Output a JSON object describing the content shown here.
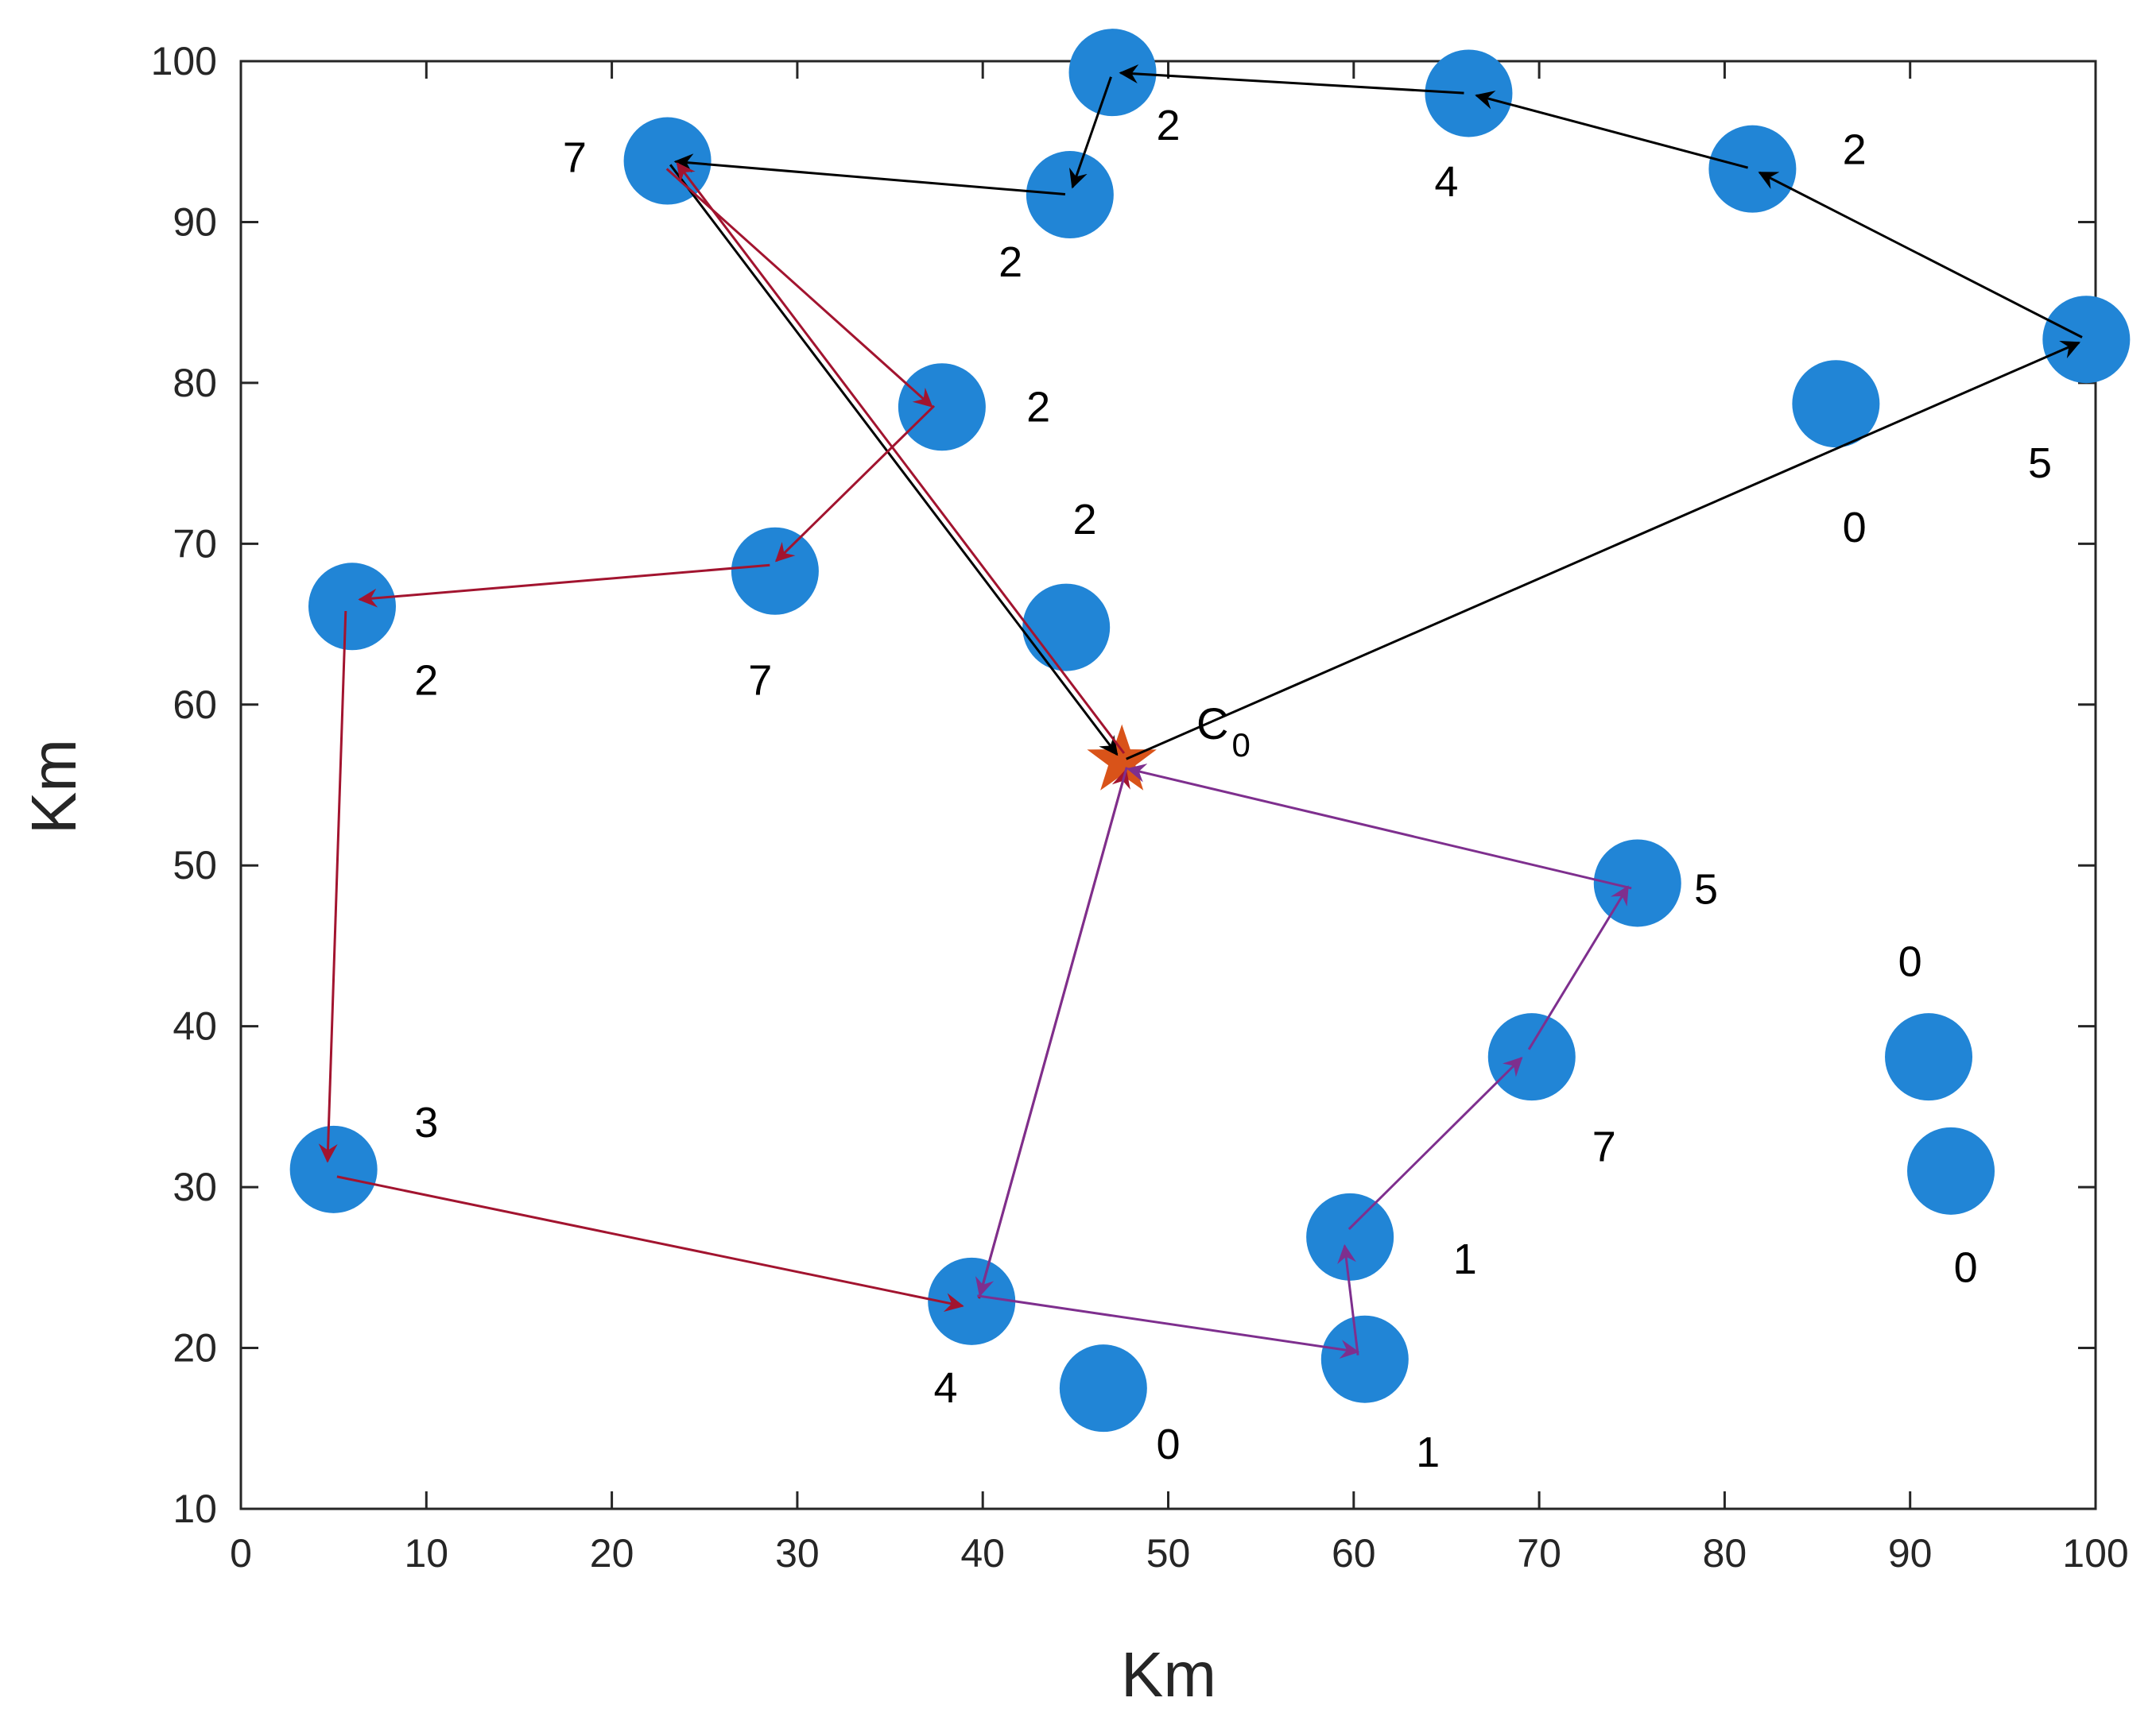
{
  "chart_data": {
    "type": "scatter",
    "title": "",
    "xlabel": "Km",
    "ylabel": "Km",
    "xlim": [
      0,
      100
    ],
    "ylim": [
      10,
      100
    ],
    "xticks": [
      "0",
      "10",
      "20",
      "30",
      "40",
      "50",
      "60",
      "70",
      "80",
      "90",
      "100"
    ],
    "yticks": [
      "10",
      "20",
      "30",
      "40",
      "50",
      "60",
      "70",
      "80",
      "90",
      "100"
    ],
    "grid": false,
    "colors": {
      "node": "#2185d6",
      "depot": "#d95319",
      "route_black": "#000000",
      "route_red": "#a2142f",
      "route_purple": "#7e2f8e"
    },
    "depot": {
      "label": "C",
      "subscript": "0",
      "x": 47.5,
      "y": 56.5
    },
    "nodes": [
      {
        "x": 47.0,
        "y": 99.3,
        "demand": "2",
        "lx": 50.0,
        "ly": 96.0
      },
      {
        "x": 66.2,
        "y": 98.0,
        "demand": "4",
        "lx": 65.0,
        "ly": 92.5
      },
      {
        "x": 81.5,
        "y": 93.3,
        "demand": "2",
        "lx": 87.0,
        "ly": 94.5
      },
      {
        "x": 99.5,
        "y": 82.7,
        "demand": "5",
        "lx": 97.0,
        "ly": 75.0
      },
      {
        "x": 86.0,
        "y": 78.7,
        "demand": "0",
        "lx": 87.0,
        "ly": 71.0
      },
      {
        "x": 44.7,
        "y": 91.7,
        "demand": "2",
        "lx": 41.5,
        "ly": 87.5
      },
      {
        "x": 23.0,
        "y": 93.8,
        "demand": "7",
        "lx": 18.0,
        "ly": 94.0
      },
      {
        "x": 37.8,
        "y": 78.5,
        "demand": "2",
        "lx": 43.0,
        "ly": 78.5
      },
      {
        "x": 28.8,
        "y": 68.3,
        "demand": "7",
        "lx": 28.0,
        "ly": 61.5
      },
      {
        "x": 6.0,
        "y": 66.1,
        "demand": "2",
        "lx": 10.0,
        "ly": 61.5
      },
      {
        "x": 44.5,
        "y": 64.8,
        "demand": "2",
        "lx": 45.5,
        "ly": 71.5
      },
      {
        "x": 75.3,
        "y": 48.9,
        "demand": "5",
        "lx": 79.0,
        "ly": 48.5
      },
      {
        "x": 69.6,
        "y": 38.1,
        "demand": "7",
        "lx": 73.5,
        "ly": 32.5
      },
      {
        "x": 91.0,
        "y": 38.1,
        "demand": "0",
        "lx": 90.0,
        "ly": 44.0
      },
      {
        "x": 92.2,
        "y": 31.0,
        "demand": "0",
        "lx": 93.0,
        "ly": 25.0
      },
      {
        "x": 5.0,
        "y": 31.1,
        "demand": "3",
        "lx": 10.0,
        "ly": 34.0
      },
      {
        "x": 59.8,
        "y": 26.9,
        "demand": "1",
        "lx": 66.0,
        "ly": 25.5
      },
      {
        "x": 39.4,
        "y": 22.9,
        "demand": "4",
        "lx": 38.0,
        "ly": 17.5
      },
      {
        "x": 60.6,
        "y": 19.3,
        "demand": "1",
        "lx": 64.0,
        "ly": 13.5
      },
      {
        "x": 46.5,
        "y": 17.5,
        "demand": "0",
        "lx": 50.0,
        "ly": 14.0
      }
    ],
    "series": [
      {
        "name": "route-black",
        "color": "#000000",
        "points": [
          [
            47.5,
            56.5
          ],
          [
            99.5,
            82.7
          ],
          [
            81.5,
            93.3
          ],
          [
            66.2,
            98.0
          ],
          [
            47.0,
            99.3
          ],
          [
            44.7,
            91.7
          ],
          [
            23.0,
            93.8
          ],
          [
            47.5,
            56.5
          ]
        ]
      },
      {
        "name": "route-red",
        "color": "#a2142f",
        "points": [
          [
            47.5,
            56.5
          ],
          [
            23.0,
            93.8
          ],
          [
            37.8,
            78.5
          ],
          [
            28.8,
            68.3
          ],
          [
            6.0,
            66.1
          ],
          [
            5.0,
            31.1
          ],
          [
            39.4,
            22.9
          ],
          [
            47.5,
            56.5
          ]
        ]
      },
      {
        "name": "route-purple",
        "color": "#7e2f8e",
        "points": [
          [
            47.5,
            56.5
          ],
          [
            39.4,
            22.9
          ],
          [
            60.6,
            19.3
          ],
          [
            59.8,
            26.9
          ],
          [
            69.6,
            38.1
          ],
          [
            75.3,
            48.9
          ],
          [
            47.5,
            56.5
          ]
        ]
      }
    ]
  }
}
